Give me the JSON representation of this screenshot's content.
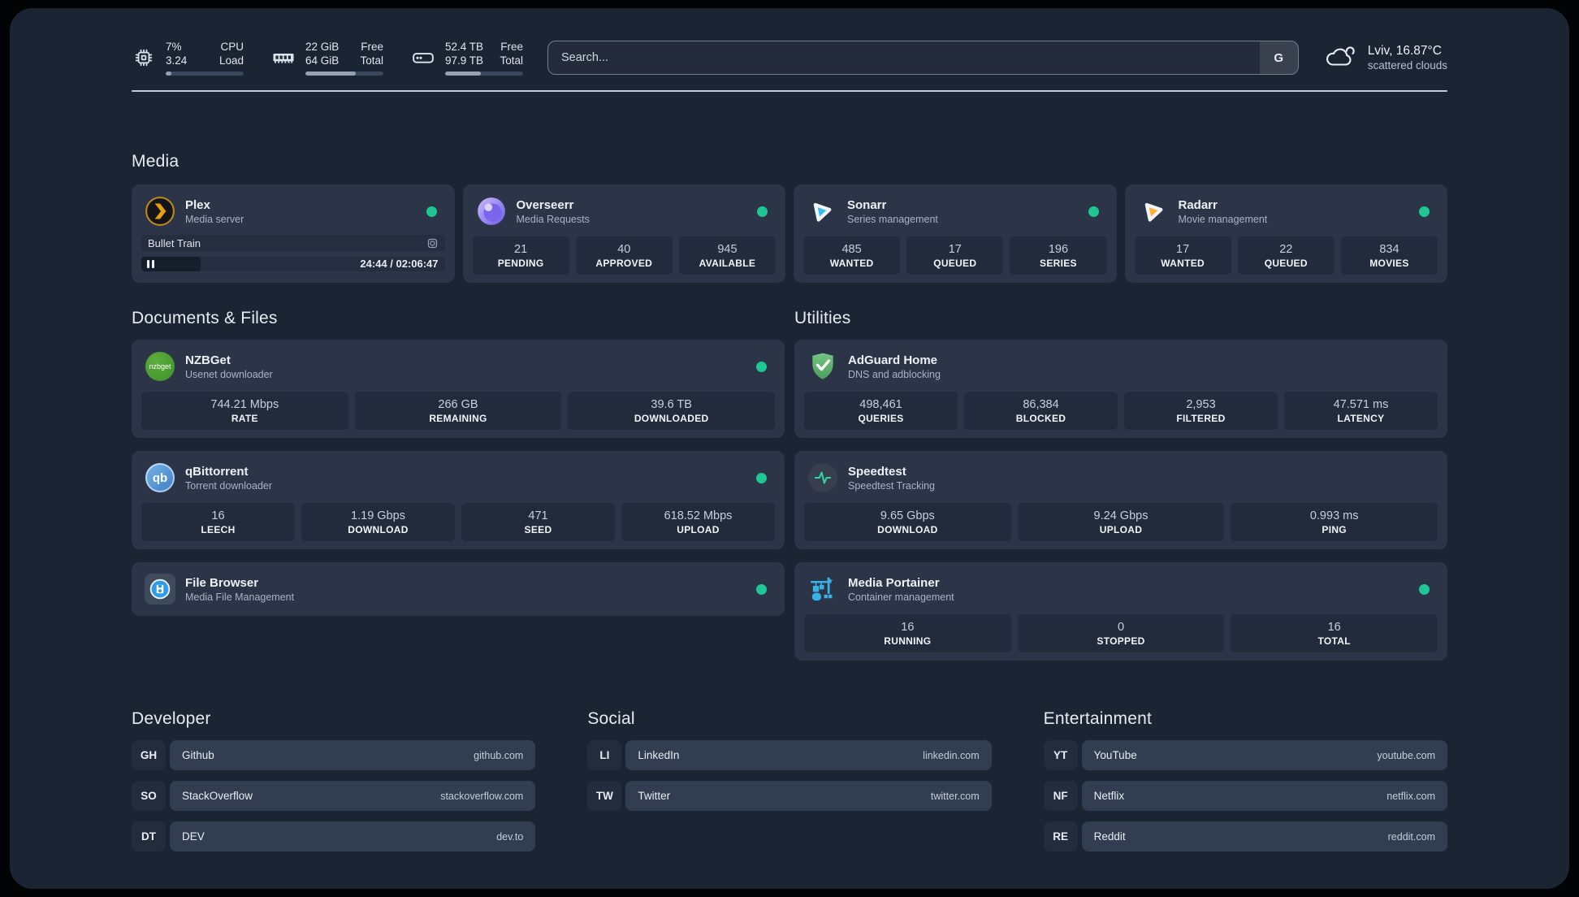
{
  "colors": {
    "status_online": "#1fc692",
    "plex_orange": "#e5a00d",
    "overseerr_purple": "#7a66ec",
    "sonarr_blue": "#38bdf2",
    "radarr_yellow": "#fcb22f",
    "nzbget_green": "#4a9e33",
    "qbittorrent_blue": "#4f8fd0",
    "adguard_green": "#5fb56e",
    "speedtest_green": "#2fd6a4",
    "filebrowser_blue": "#2f9ceb",
    "portainer_blue": "#39b1e4"
  },
  "header": {
    "cpu": {
      "value_top": "7%",
      "value_bottom": "3.24",
      "label_top": "CPU",
      "label_bottom": "Load",
      "progress_pct": 7
    },
    "memory": {
      "value_top": "22 GiB",
      "value_bottom": "64 GiB",
      "label_top": "Free",
      "label_bottom": "Total",
      "progress_pct": 65
    },
    "disk": {
      "value_top": "52.4 TB",
      "value_bottom": "97.9 TB",
      "label_top": "Free",
      "label_bottom": "Total",
      "progress_pct": 46
    },
    "search": {
      "placeholder": "Search...",
      "button": "G"
    },
    "weather": {
      "title": "Lviv, 16.87°C",
      "subtitle": "scattered clouds"
    }
  },
  "media_section": {
    "title": "Media",
    "plex": {
      "name": "Plex",
      "description": "Media server",
      "now_playing": {
        "title": "Bullet Train",
        "time": "24:44 / 02:06:47",
        "progress_pct": 19.5
      }
    },
    "overseerr": {
      "name": "Overseerr",
      "description": "Media Requests",
      "stats": [
        {
          "value": "21",
          "label": "PENDING"
        },
        {
          "value": "40",
          "label": "APPROVED"
        },
        {
          "value": "945",
          "label": "AVAILABLE"
        }
      ]
    },
    "sonarr": {
      "name": "Sonarr",
      "description": "Series management",
      "stats": [
        {
          "value": "485",
          "label": "WANTED"
        },
        {
          "value": "17",
          "label": "QUEUED"
        },
        {
          "value": "196",
          "label": "SERIES"
        }
      ]
    },
    "radarr": {
      "name": "Radarr",
      "description": "Movie management",
      "stats": [
        {
          "value": "17",
          "label": "WANTED"
        },
        {
          "value": "22",
          "label": "QUEUED"
        },
        {
          "value": "834",
          "label": "MOVIES"
        }
      ]
    }
  },
  "documents_section": {
    "title": "Documents & Files",
    "nzbget": {
      "name": "NZBGet",
      "description": "Usenet downloader",
      "badge_text": "nzbget",
      "stats": [
        {
          "value": "744.21 Mbps",
          "label": "RATE"
        },
        {
          "value": "266 GB",
          "label": "REMAINING"
        },
        {
          "value": "39.6 TB",
          "label": "DOWNLOADED"
        }
      ]
    },
    "qbittorrent": {
      "name": "qBittorrent",
      "description": "Torrent downloader",
      "badge_text": "qb",
      "stats": [
        {
          "value": "16",
          "label": "LEECH"
        },
        {
          "value": "1.19 Gbps",
          "label": "DOWNLOAD"
        },
        {
          "value": "471",
          "label": "SEED"
        },
        {
          "value": "618.52 Mbps",
          "label": "UPLOAD"
        }
      ]
    },
    "filebrowser": {
      "name": "File Browser",
      "description": "Media File Management"
    }
  },
  "utilities_section": {
    "title": "Utilities",
    "adguard": {
      "name": "AdGuard Home",
      "description": "DNS and adblocking",
      "stats": [
        {
          "value": "498,461",
          "label": "QUERIES"
        },
        {
          "value": "86,384",
          "label": "BLOCKED"
        },
        {
          "value": "2,953",
          "label": "FILTERED"
        },
        {
          "value": "47.571 ms",
          "label": "LATENCY"
        }
      ]
    },
    "speedtest": {
      "name": "Speedtest",
      "description": "Speedtest Tracking",
      "stats": [
        {
          "value": "9.65 Gbps",
          "label": "DOWNLOAD"
        },
        {
          "value": "9.24 Gbps",
          "label": "UPLOAD"
        },
        {
          "value": "0.993 ms",
          "label": "PING"
        }
      ]
    },
    "portainer": {
      "name": "Media Portainer",
      "description": "Container management",
      "stats": [
        {
          "value": "16",
          "label": "RUNNING"
        },
        {
          "value": "0",
          "label": "STOPPED"
        },
        {
          "value": "16",
          "label": "TOTAL"
        }
      ]
    }
  },
  "bookmarks": {
    "developer": {
      "title": "Developer",
      "links": [
        {
          "abbr": "GH",
          "name": "Github",
          "url": "github.com"
        },
        {
          "abbr": "SO",
          "name": "StackOverflow",
          "url": "stackoverflow.com"
        },
        {
          "abbr": "DT",
          "name": "DEV",
          "url": "dev.to"
        }
      ]
    },
    "social": {
      "title": "Social",
      "links": [
        {
          "abbr": "LI",
          "name": "LinkedIn",
          "url": "linkedin.com"
        },
        {
          "abbr": "TW",
          "name": "Twitter",
          "url": "twitter.com"
        }
      ]
    },
    "entertainment": {
      "title": "Entertainment",
      "links": [
        {
          "abbr": "YT",
          "name": "YouTube",
          "url": "youtube.com"
        },
        {
          "abbr": "NF",
          "name": "Netflix",
          "url": "netflix.com"
        },
        {
          "abbr": "RE",
          "name": "Reddit",
          "url": "reddit.com"
        }
      ]
    }
  }
}
